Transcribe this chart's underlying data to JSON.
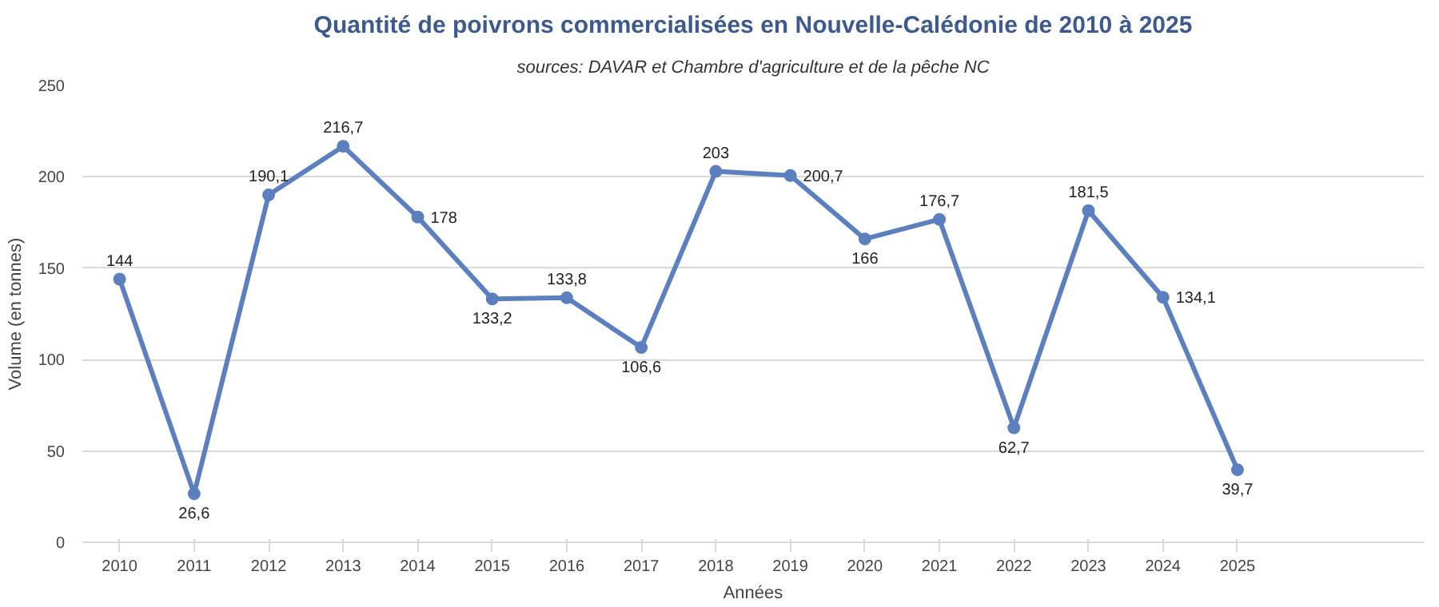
{
  "chart_data": {
    "type": "line",
    "title": "Quantité de poivrons commercialisées en Nouvelle-Calédonie de 2010 à 2025",
    "subtitle": "sources: DAVAR et Chambre d'agriculture et de la pêche NC",
    "xlabel": "Années",
    "ylabel": "Volume (en tonnes)",
    "categories": [
      "2010",
      "2011",
      "2012",
      "2013",
      "2014",
      "2015",
      "2016",
      "2017",
      "2018",
      "2019",
      "2020",
      "2021",
      "2022",
      "2023",
      "2024",
      "2025"
    ],
    "series": [
      {
        "color": "#5b7fbf",
        "values": [
          144,
          26.6,
          190.1,
          216.7,
          178,
          133.2,
          133.8,
          106.6,
          203,
          200.7,
          166,
          176.7,
          62.7,
          181.5,
          134.1,
          39.7
        ],
        "value_labels": [
          "144",
          "26,6",
          "190,1",
          "216,7",
          "178",
          "133,2",
          "133,8",
          "106,6",
          "203",
          "200,7",
          "166",
          "176,7",
          "62,7",
          "181,5",
          "134,1",
          "39,7"
        ]
      }
    ],
    "ylim": [
      0,
      250
    ],
    "yticks": [
      0,
      50,
      100,
      150,
      200,
      250
    ],
    "grid": "y",
    "marker": "circle",
    "line_style": "solid"
  }
}
